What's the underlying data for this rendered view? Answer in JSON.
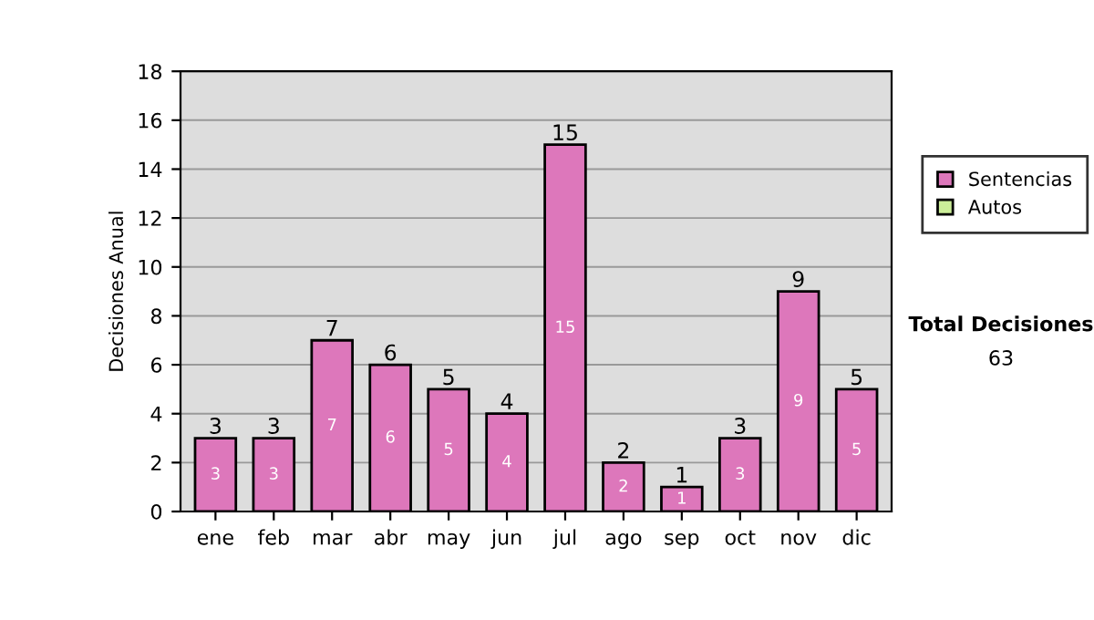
{
  "chart_data": {
    "type": "bar",
    "ylabel": "Decisiones Anual",
    "categories": [
      "ene",
      "feb",
      "mar",
      "abr",
      "may",
      "jun",
      "jul",
      "ago",
      "sep",
      "oct",
      "nov",
      "dic"
    ],
    "series": [
      {
        "name": "Sentencias",
        "color": "#dd77bb",
        "values": [
          3,
          3,
          7,
          6,
          5,
          4,
          15,
          2,
          1,
          3,
          9,
          5
        ],
        "value_labels": [
          "3",
          "3",
          "7",
          "6",
          "5",
          "4",
          "15",
          "2",
          "1",
          "3",
          "9",
          "5"
        ]
      },
      {
        "name": "Autos",
        "color": "#ccee99",
        "values": [
          null,
          null,
          null,
          null,
          null,
          null,
          null,
          null,
          null,
          null,
          null,
          null
        ]
      }
    ],
    "stacked": true,
    "totals": [
      "3",
      "3",
      "7",
      "6",
      "5",
      "4",
      "15",
      "2",
      "1",
      "3",
      "9",
      "5"
    ],
    "ylim": [
      0,
      18
    ],
    "yticks": [
      0,
      2,
      4,
      6,
      8,
      10,
      12,
      14,
      16,
      18
    ],
    "grid": "y",
    "legend": "right",
    "annotations": [
      "Total Decisiones",
      "63"
    ]
  }
}
